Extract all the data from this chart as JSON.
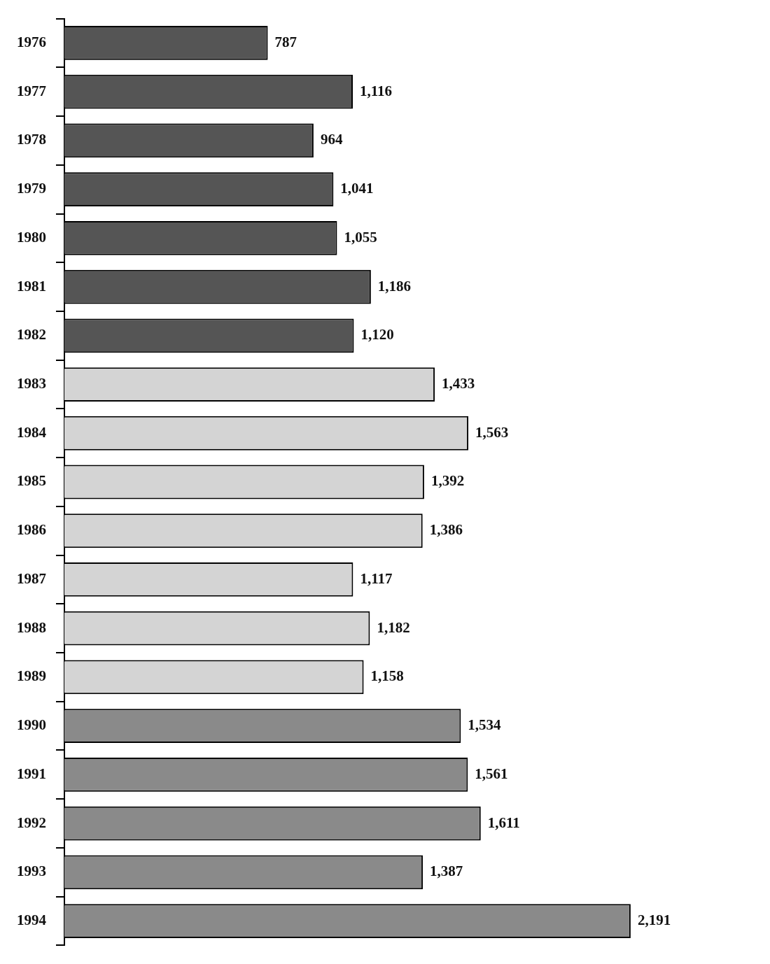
{
  "chart_data": {
    "type": "bar",
    "orientation": "horizontal",
    "categories": [
      "1976",
      "1977",
      "1978",
      "1979",
      "1980",
      "1981",
      "1982",
      "1983",
      "1984",
      "1985",
      "1986",
      "1987",
      "1988",
      "1989",
      "1990",
      "1991",
      "1992",
      "1993",
      "1994"
    ],
    "values": [
      787,
      1116,
      964,
      1041,
      1055,
      1186,
      1120,
      1433,
      1563,
      1392,
      1386,
      1117,
      1182,
      1158,
      1534,
      1561,
      1611,
      1387,
      2191
    ],
    "colors": [
      "#555555",
      "#555555",
      "#555555",
      "#555555",
      "#555555",
      "#555555",
      "#555555",
      "#d4d4d4",
      "#d4d4d4",
      "#d4d4d4",
      "#d4d4d4",
      "#d4d4d4",
      "#d4d4d4",
      "#d4d4d4",
      "#8a8a8a",
      "#8a8a8a",
      "#8a8a8a",
      "#8a8a8a",
      "#8a8a8a"
    ],
    "value_labels": [
      "787",
      "1,116",
      "964",
      "1,041",
      "1,055",
      "1,186",
      "1,120",
      "1,433",
      "1,563",
      "1,392",
      "1,386",
      "1,117",
      "1,182",
      "1,158",
      "1,534",
      "1,561",
      "1,611",
      "1,387",
      "2,191"
    ],
    "legend": false
  }
}
